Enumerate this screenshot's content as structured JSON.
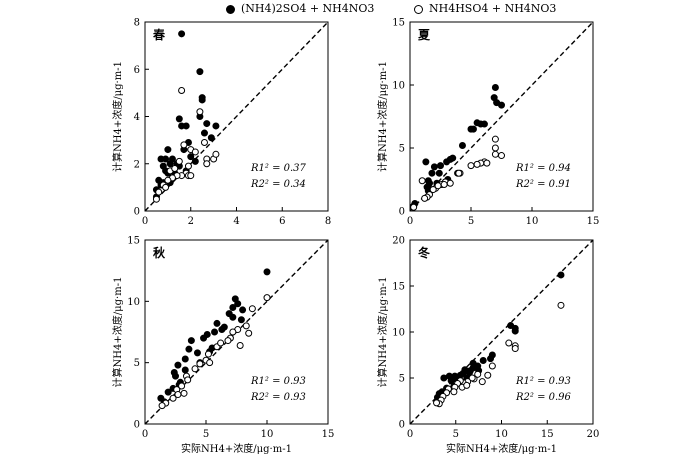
{
  "legend": {
    "series1": "(NH4)2SO4 + NH4NO3",
    "series2": "NH4HSO4 + NH4NO3"
  },
  "chart_data": [
    {
      "type": "scatter",
      "title": "春",
      "xlabel": "",
      "ylabel": "计算NH4+浓度/μg·m-1",
      "xlim": [
        0,
        8
      ],
      "ylim": [
        0,
        8
      ],
      "xticks": [
        "0",
        "2",
        "4",
        "6",
        "8"
      ],
      "yticks": [
        "0",
        "2",
        "4",
        "6",
        "8"
      ],
      "identity_line": true,
      "r1": "R1² = 0.37",
      "r2": "R2² = 0.34",
      "series": [
        {
          "name": "(NH4)2SO4 + NH4NO3",
          "marker": "filled",
          "points": [
            [
              1.6,
              7.5
            ],
            [
              2.4,
              5.9
            ],
            [
              2.5,
              4.8
            ],
            [
              2.5,
              4.7
            ],
            [
              2.4,
              4.0
            ],
            [
              1.5,
              3.9
            ],
            [
              1.6,
              3.6
            ],
            [
              1.8,
              3.6
            ],
            [
              2.7,
              3.7
            ],
            [
              2.6,
              3.3
            ],
            [
              3.1,
              3.6
            ],
            [
              2.9,
              3.1
            ],
            [
              1.9,
              2.9
            ],
            [
              1.7,
              2.6
            ],
            [
              1.0,
              2.6
            ],
            [
              0.7,
              2.2
            ],
            [
              0.9,
              2.2
            ],
            [
              1.2,
              2.2
            ],
            [
              1.4,
              2.0
            ],
            [
              1.1,
              2.0
            ],
            [
              0.8,
              1.9
            ],
            [
              0.9,
              1.7
            ],
            [
              1.0,
              1.6
            ],
            [
              1.3,
              1.6
            ],
            [
              1.2,
              1.4
            ],
            [
              0.6,
              1.3
            ],
            [
              0.7,
              1.1
            ],
            [
              0.8,
              1.2
            ],
            [
              0.5,
              0.9
            ],
            [
              0.5,
              0.6
            ],
            [
              2.0,
              2.3
            ],
            [
              2.2,
              2.1
            ],
            [
              1.5,
              1.9
            ],
            [
              1.8,
              1.7
            ],
            [
              1.1,
              1.2
            ]
          ]
        },
        {
          "name": "NH4HSO4 + NH4NO3",
          "marker": "open",
          "points": [
            [
              1.6,
              5.1
            ],
            [
              1.7,
              2.8
            ],
            [
              2.0,
              2.6
            ],
            [
              2.4,
              4.2
            ],
            [
              2.6,
              2.9
            ],
            [
              2.2,
              2.5
            ],
            [
              2.7,
              2.2
            ],
            [
              3.0,
              2.2
            ],
            [
              3.1,
              2.4
            ],
            [
              2.7,
              2.0
            ],
            [
              1.9,
              1.9
            ],
            [
              1.8,
              1.6
            ],
            [
              1.6,
              1.5
            ],
            [
              1.9,
              1.5
            ],
            [
              2.0,
              1.5
            ],
            [
              1.4,
              1.5
            ],
            [
              1.2,
              1.4
            ],
            [
              1.0,
              1.3
            ],
            [
              0.8,
              1.1
            ],
            [
              0.9,
              1.0
            ],
            [
              0.6,
              0.8
            ],
            [
              0.5,
              0.5
            ],
            [
              1.1,
              1.7
            ],
            [
              1.3,
              1.8
            ],
            [
              1.5,
              2.1
            ]
          ]
        }
      ]
    },
    {
      "type": "scatter",
      "title": "夏",
      "xlabel": "",
      "ylabel": "计算NH4+浓度/μg·m-1",
      "xlim": [
        0,
        15
      ],
      "ylim": [
        0,
        15
      ],
      "xticks": [
        "0",
        "5",
        "10",
        "15"
      ],
      "yticks": [
        "0",
        "5",
        "10",
        "15"
      ],
      "identity_line": true,
      "r1": "R1² = 0.94",
      "r2": "R2² = 0.91",
      "series": [
        {
          "name": "(NH4)2SO4 + NH4NO3",
          "marker": "filled",
          "points": [
            [
              7.0,
              9.8
            ],
            [
              6.9,
              9.0
            ],
            [
              7.1,
              8.6
            ],
            [
              7.5,
              8.4
            ],
            [
              5.5,
              7.0
            ],
            [
              5.8,
              6.9
            ],
            [
              6.1,
              6.9
            ],
            [
              5.0,
              6.5
            ],
            [
              5.2,
              6.5
            ],
            [
              4.3,
              5.2
            ],
            [
              3.5,
              4.2
            ],
            [
              3.3,
              4.1
            ],
            [
              3.0,
              3.9
            ],
            [
              1.3,
              3.9
            ],
            [
              2.0,
              3.5
            ],
            [
              2.5,
              3.6
            ],
            [
              1.8,
              3.0
            ],
            [
              2.4,
              3.0
            ],
            [
              1.5,
              2.4
            ],
            [
              1.6,
              2.2
            ],
            [
              2.2,
              2.2
            ],
            [
              1.4,
              1.9
            ],
            [
              1.5,
              1.6
            ],
            [
              1.8,
              1.7
            ],
            [
              0.4,
              0.6
            ],
            [
              0.3,
              0.4
            ],
            [
              2.9,
              2.3
            ],
            [
              3.1,
              2.5
            ],
            [
              3.9,
              3.0
            ]
          ]
        },
        {
          "name": "NH4HSO4 + NH4NO3",
          "marker": "open",
          "points": [
            [
              7.0,
              5.7
            ],
            [
              7.0,
              5.0
            ],
            [
              7.0,
              4.5
            ],
            [
              7.5,
              4.4
            ],
            [
              6.1,
              3.9
            ],
            [
              6.3,
              3.8
            ],
            [
              5.8,
              3.8
            ],
            [
              5.5,
              3.7
            ],
            [
              5.0,
              3.6
            ],
            [
              4.1,
              3.0
            ],
            [
              4.0,
              3.0
            ],
            [
              3.0,
              2.3
            ],
            [
              2.9,
              2.3
            ],
            [
              2.6,
              2.1
            ],
            [
              2.8,
              2.1
            ],
            [
              2.1,
              1.8
            ],
            [
              1.9,
              1.7
            ],
            [
              1.6,
              1.3
            ],
            [
              1.4,
              1.1
            ],
            [
              1.2,
              1.0
            ],
            [
              0.3,
              0.3
            ],
            [
              1.0,
              2.4
            ],
            [
              2.3,
              2.0
            ],
            [
              3.3,
              2.2
            ]
          ]
        }
      ]
    },
    {
      "type": "scatter",
      "title": "秋",
      "xlabel": "实际NH4+浓度/μg·m-1",
      "ylabel": "计算NH4+浓度/μg·m-1",
      "xlim": [
        0,
        15
      ],
      "ylim": [
        0,
        15
      ],
      "xticks": [
        "0",
        "5",
        "10",
        "15"
      ],
      "yticks": [
        "0",
        "5",
        "10",
        "15"
      ],
      "identity_line": true,
      "r1": "R1² = 0.93",
      "r2": "R2² = 0.93",
      "series": [
        {
          "name": "(NH4)2SO4 + NH4NO3",
          "marker": "filled",
          "points": [
            [
              10.0,
              12.4
            ],
            [
              7.4,
              10.2
            ],
            [
              7.6,
              9.8
            ],
            [
              7.2,
              9.5
            ],
            [
              8.0,
              9.3
            ],
            [
              6.9,
              9.0
            ],
            [
              7.2,
              8.7
            ],
            [
              7.9,
              8.5
            ],
            [
              5.9,
              8.2
            ],
            [
              6.3,
              7.7
            ],
            [
              5.7,
              7.5
            ],
            [
              5.1,
              7.3
            ],
            [
              4.8,
              7.0
            ],
            [
              3.8,
              6.8
            ],
            [
              3.6,
              6.1
            ],
            [
              4.3,
              5.8
            ],
            [
              3.3,
              5.3
            ],
            [
              4.5,
              5.0
            ],
            [
              5.3,
              5.9
            ],
            [
              2.7,
              4.8
            ],
            [
              2.4,
              4.2
            ],
            [
              3.3,
              4.4
            ],
            [
              2.5,
              3.9
            ],
            [
              2.9,
              3.4
            ],
            [
              2.8,
              3.2
            ],
            [
              2.3,
              2.9
            ],
            [
              1.9,
              2.6
            ],
            [
              1.3,
              2.1
            ],
            [
              1.6,
              1.8
            ],
            [
              5.5,
              6.2
            ],
            [
              6.5,
              7.9
            ]
          ]
        },
        {
          "name": "NH4HSO4 + NH4NO3",
          "marker": "open",
          "points": [
            [
              10.0,
              10.3
            ],
            [
              8.8,
              9.4
            ],
            [
              8.3,
              8.0
            ],
            [
              7.6,
              7.7
            ],
            [
              7.2,
              7.5
            ],
            [
              8.5,
              7.4
            ],
            [
              7.0,
              7.0
            ],
            [
              6.8,
              6.8
            ],
            [
              5.9,
              6.3
            ],
            [
              6.2,
              6.6
            ],
            [
              5.2,
              5.7
            ],
            [
              5.0,
              5.2
            ],
            [
              4.5,
              4.9
            ],
            [
              4.1,
              4.5
            ],
            [
              3.4,
              3.9
            ],
            [
              3.5,
              3.6
            ],
            [
              3.0,
              3.1
            ],
            [
              2.6,
              2.8
            ],
            [
              3.2,
              2.5
            ],
            [
              2.7,
              2.4
            ],
            [
              2.3,
              2.1
            ],
            [
              1.7,
              1.7
            ],
            [
              1.4,
              1.5
            ],
            [
              7.8,
              6.4
            ],
            [
              5.3,
              5.0
            ]
          ]
        }
      ]
    },
    {
      "type": "scatter",
      "title": "冬",
      "xlabel": "实际NH4+浓度/μg·m-1",
      "ylabel": "计算NH4+浓度/μg·m-1",
      "xlim": [
        0,
        20
      ],
      "ylim": [
        0,
        20
      ],
      "xticks": [
        "0",
        "5",
        "10",
        "15",
        "20"
      ],
      "yticks": [
        "0",
        "5",
        "10",
        "15",
        "20"
      ],
      "identity_line": true,
      "r1": "R1² = 0.93",
      "r2": "R2² = 0.96",
      "series": [
        {
          "name": "(NH4)2SO4 + NH4NO3",
          "marker": "filled",
          "points": [
            [
              16.5,
              16.2
            ],
            [
              11.0,
              10.7
            ],
            [
              11.5,
              10.4
            ],
            [
              11.5,
              10.1
            ],
            [
              9.0,
              7.5
            ],
            [
              8.8,
              7.1
            ],
            [
              6.9,
              6.6
            ],
            [
              7.4,
              6.3
            ],
            [
              6.9,
              6.1
            ],
            [
              6.6,
              5.8
            ],
            [
              6.0,
              5.9
            ],
            [
              6.5,
              5.6
            ],
            [
              5.8,
              5.5
            ],
            [
              5.5,
              5.3
            ],
            [
              4.9,
              5.2
            ],
            [
              4.3,
              5.2
            ],
            [
              3.7,
              5.0
            ],
            [
              5.0,
              4.9
            ],
            [
              4.5,
              4.7
            ],
            [
              6.2,
              5.0
            ],
            [
              5.5,
              4.6
            ],
            [
              4.8,
              4.1
            ],
            [
              4.0,
              3.9
            ],
            [
              3.5,
              3.5
            ],
            [
              3.2,
              3.3
            ],
            [
              3.0,
              2.9
            ],
            [
              7.5,
              5.8
            ],
            [
              8.0,
              6.9
            ]
          ]
        },
        {
          "name": "NH4HSO4 + NH4NO3",
          "marker": "open",
          "points": [
            [
              16.5,
              12.9
            ],
            [
              11.5,
              8.5
            ],
            [
              11.5,
              8.2
            ],
            [
              10.8,
              8.8
            ],
            [
              9.0,
              6.3
            ],
            [
              8.5,
              5.3
            ],
            [
              7.4,
              5.4
            ],
            [
              7.0,
              4.9
            ],
            [
              6.8,
              5.0
            ],
            [
              6.3,
              4.6
            ],
            [
              5.8,
              4.5
            ],
            [
              5.5,
              4.7
            ],
            [
              5.2,
              4.4
            ],
            [
              5.7,
              4.0
            ],
            [
              4.9,
              4.0
            ],
            [
              4.2,
              3.8
            ],
            [
              4.8,
              3.5
            ],
            [
              4.0,
              3.4
            ],
            [
              3.6,
              3.0
            ],
            [
              3.4,
              2.6
            ],
            [
              3.2,
              2.2
            ],
            [
              2.9,
              2.3
            ],
            [
              7.9,
              4.6
            ],
            [
              6.2,
              4.2
            ]
          ]
        }
      ]
    }
  ]
}
